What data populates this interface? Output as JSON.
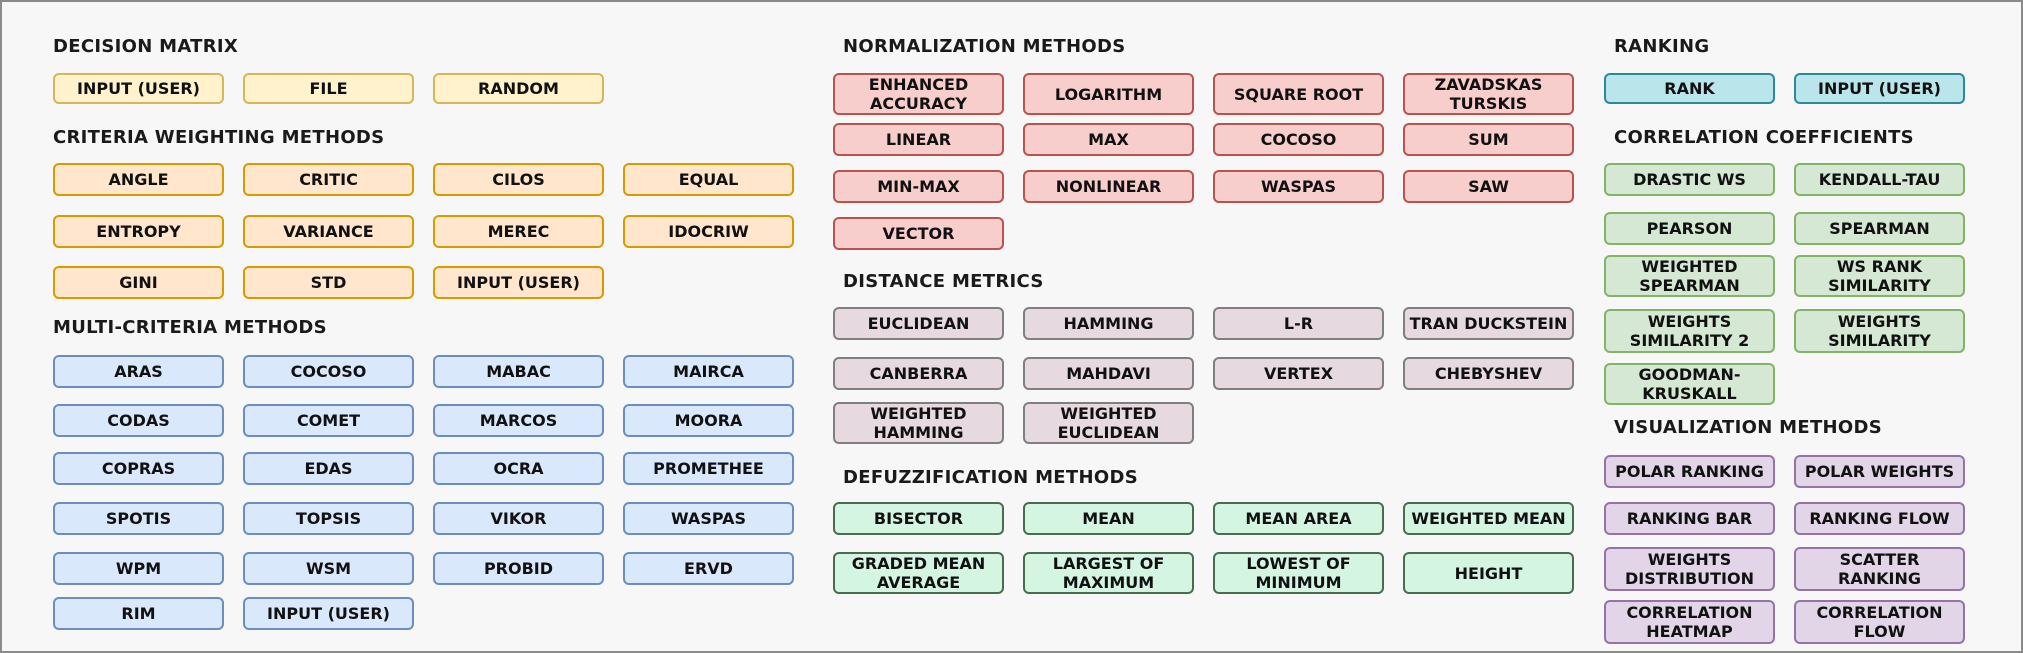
{
  "colors": {
    "yellow": {
      "fill": "#fff2cc",
      "stroke": "#d6b656"
    },
    "orange": {
      "fill": "#ffe6cc",
      "stroke": "#d79b00"
    },
    "blue": {
      "fill": "#dae8fc",
      "stroke": "#6c8ebf"
    },
    "red": {
      "fill": "#f8cecc",
      "stroke": "#b85450"
    },
    "mauve": {
      "fill": "#e6d9df",
      "stroke": "#7f7f7f"
    },
    "mint": {
      "fill": "#d5f5e3",
      "stroke": "#4a6b50"
    },
    "teal": {
      "fill": "#b9e5eb",
      "stroke": "#2b8a98"
    },
    "green": {
      "fill": "#d5e8d4",
      "stroke": "#82b366"
    },
    "purple": {
      "fill": "#e1d5e7",
      "stroke": "#9673a6"
    }
  },
  "sections": [
    {
      "title": "DECISION MATRIX",
      "color": "yellow",
      "items": [
        "INPUT (USER)",
        "FILE",
        "RANDOM"
      ]
    },
    {
      "title": "CRITERIA WEIGHTING METHODS",
      "color": "orange",
      "items": [
        "ANGLE",
        "CRITIC",
        "CILOS",
        "EQUAL",
        "ENTROPY",
        "VARIANCE",
        "MEREC",
        "IDOCRIW",
        "GINI",
        "STD",
        "INPUT (USER)"
      ]
    },
    {
      "title": "MULTI-CRITERIA METHODS",
      "color": "blue",
      "items": [
        "ARAS",
        "COCOSO",
        "MABAC",
        "MAIRCA",
        "CODAS",
        "COMET",
        "MARCOS",
        "MOORA",
        "COPRAS",
        "EDAS",
        "OCRA",
        "PROMETHEE",
        "SPOTIS",
        "TOPSIS",
        "VIKOR",
        "WASPAS",
        "WPM",
        "WSM",
        "PROBID",
        "ERVD",
        "RIM",
        "INPUT (USER)"
      ]
    },
    {
      "title": "NORMALIZATION METHODS",
      "color": "red",
      "items": [
        "ENHANCED\nACCURACY",
        "LOGARITHM",
        "SQUARE ROOT",
        "ZAVADSKAS\nTURSKIS",
        "LINEAR",
        "MAX",
        "COCOSO",
        "SUM",
        "MIN-MAX",
        "NONLINEAR",
        "WASPAS",
        "SAW",
        "VECTOR"
      ]
    },
    {
      "title": "DISTANCE METRICS",
      "color": "mauve",
      "items": [
        "EUCLIDEAN",
        "HAMMING",
        "L-R",
        "TRAN DUCKSTEIN",
        "CANBERRA",
        "MAHDAVI",
        "VERTEX",
        "CHEBYSHEV",
        "WEIGHTED\nHAMMING",
        "WEIGHTED\nEUCLIDEAN"
      ]
    },
    {
      "title": "DEFUZZIFICATION METHODS",
      "color": "mint",
      "items": [
        "BISECTOR",
        "MEAN",
        "MEAN AREA",
        "WEIGHTED MEAN",
        "GRADED MEAN\nAVERAGE",
        "LARGEST OF\nMAXIMUM",
        "LOWEST OF\nMINIMUM",
        "HEIGHT"
      ]
    },
    {
      "title": "RANKING",
      "color": "teal",
      "items": [
        "RANK",
        "INPUT (USER)"
      ]
    },
    {
      "title": "CORRELATION COEFFICIENTS",
      "color": "green",
      "items": [
        "DRASTIC WS",
        "KENDALL-TAU",
        "PEARSON",
        "SPEARMAN",
        "WEIGHTED\nSPEARMAN",
        "WS RANK\nSIMILARITY",
        "WEIGHTS\nSIMILARITY 2",
        "WEIGHTS\nSIMILARITY",
        "GOODMAN-\nKRUSKALL"
      ]
    },
    {
      "title": "VISUALIZATION METHODS",
      "color": "purple",
      "items": [
        "POLAR RANKING",
        "POLAR WEIGHTS",
        "RANKING BAR",
        "RANKING FLOW",
        "WEIGHTS\nDISTRIBUTION",
        "SCATTER\nRANKING",
        "CORRELATION\nHEATMAP",
        "CORRELATION\nFLOW"
      ]
    }
  ]
}
